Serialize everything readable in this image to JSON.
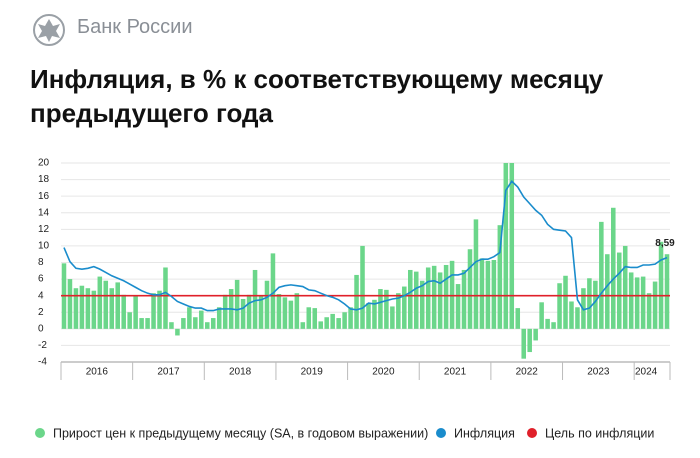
{
  "header": {
    "brand": "Банк России"
  },
  "chart_data": {
    "type": "bar",
    "title": "Инфляция, в % к соответствующему месяцу предыдущего года",
    "categories": [
      null,
      null,
      null,
      null,
      null,
      null,
      "2016",
      null,
      null,
      null,
      null,
      null,
      null,
      null,
      null,
      null,
      null,
      null,
      "2017",
      null,
      null,
      null,
      null,
      null,
      null,
      null,
      null,
      null,
      null,
      null,
      "2018",
      null,
      null,
      null,
      null,
      null,
      null,
      null,
      null,
      null,
      null,
      null,
      "2019",
      null,
      null,
      null,
      null,
      null,
      null,
      null,
      null,
      null,
      null,
      null,
      "2020",
      null,
      null,
      null,
      null,
      null,
      null,
      null,
      null,
      null,
      null,
      null,
      "2021",
      null,
      null,
      null,
      null,
      null,
      null,
      null,
      null,
      null,
      null,
      null,
      "2022",
      null,
      null,
      null,
      null,
      null,
      null,
      null,
      null,
      null,
      null,
      null,
      "2023",
      null,
      null,
      null,
      null,
      null,
      null,
      null,
      "2024",
      null,
      null,
      null
    ],
    "ylim": [
      -4,
      20
    ],
    "yticks": [
      -4,
      -2,
      0,
      2,
      4,
      6,
      8,
      10,
      12,
      14,
      16,
      18,
      20
    ],
    "grid": true,
    "series": [
      {
        "name": "Прирост цен к предыдущему месяцу (SA, в годовом выражении)",
        "type": "bar",
        "color": "#6bd68a",
        "values": [
          7.9,
          6.0,
          4.9,
          5.2,
          4.9,
          4.6,
          6.3,
          5.8,
          4.9,
          5.6,
          4.1,
          2.0,
          4.0,
          1.3,
          1.3,
          4.3,
          4.6,
          7.4,
          0.8,
          -0.8,
          1.3,
          2.6,
          1.4,
          2.2,
          0.8,
          1.3,
          2.6,
          4.1,
          4.8,
          5.9,
          3.6,
          4.1,
          7.1,
          4.0,
          5.8,
          9.1,
          4.2,
          3.8,
          3.4,
          4.3,
          0.8,
          2.6,
          2.5,
          0.9,
          1.4,
          1.8,
          1.3,
          2.0,
          2.6,
          6.5,
          10.0,
          3.1,
          3.5,
          4.8,
          4.7,
          2.7,
          4.3,
          5.1,
          7.1,
          6.9,
          5.8,
          7.4,
          7.6,
          6.8,
          7.7,
          8.2,
          5.4,
          7.1,
          9.6,
          13.2,
          8.5,
          8.2,
          8.3,
          12.5,
          20,
          20,
          2.5,
          -3.6,
          -2.8,
          -1.4,
          3.2,
          1.2,
          0.8,
          5.5,
          6.4,
          3.3,
          2.6,
          4.9,
          6.1,
          5.8,
          12.9,
          9.0,
          14.6,
          9.2,
          10.0,
          6.8,
          6.2,
          6.3,
          4.3,
          5.7,
          10.5,
          9.0
        ]
      },
      {
        "name": "Инфляция",
        "type": "line",
        "color": "#1a8ccc",
        "values": [
          9.8,
          8.1,
          7.3,
          7.2,
          7.3,
          7.5,
          7.2,
          6.8,
          6.4,
          6.1,
          5.8,
          5.4,
          5.0,
          4.6,
          4.3,
          4.1,
          4.1,
          4.4,
          3.9,
          3.3,
          3.0,
          2.7,
          2.5,
          2.5,
          2.2,
          2.2,
          2.4,
          2.4,
          2.4,
          2.3,
          2.5,
          3.1,
          3.4,
          3.5,
          3.8,
          4.3,
          5.0,
          5.2,
          5.3,
          5.2,
          5.1,
          4.7,
          4.6,
          4.3,
          4.0,
          3.8,
          3.5,
          3.0,
          2.4,
          2.3,
          2.5,
          3.1,
          3.0,
          3.2,
          3.4,
          3.6,
          3.7,
          4.0,
          4.4,
          4.9,
          5.2,
          5.7,
          5.8,
          5.5,
          6.0,
          6.5,
          6.5,
          6.7,
          7.4,
          8.1,
          8.4,
          8.4,
          8.7,
          9.2,
          16.7,
          17.8,
          17.1,
          15.9,
          15.1,
          14.3,
          13.7,
          12.6,
          12.0,
          11.9,
          11.8,
          11.0,
          3.5,
          2.3,
          2.5,
          3.3,
          4.3,
          5.2,
          6.0,
          6.7,
          7.5,
          7.4,
          7.4,
          7.7,
          7.7,
          7.8,
          8.3,
          8.59
        ],
        "value_labels": [
          null,
          null,
          null,
          null,
          null,
          null,
          null,
          null,
          null,
          null,
          null,
          null,
          null,
          null,
          null,
          null,
          null,
          null,
          null,
          null,
          null,
          null,
          null,
          null,
          null,
          null,
          null,
          null,
          null,
          null,
          null,
          null,
          null,
          null,
          null,
          null,
          null,
          null,
          null,
          null,
          null,
          null,
          null,
          null,
          null,
          null,
          null,
          null,
          null,
          null,
          null,
          null,
          null,
          null,
          null,
          null,
          null,
          null,
          null,
          null,
          null,
          null,
          null,
          null,
          null,
          null,
          null,
          null,
          null,
          null,
          null,
          null,
          null,
          null,
          null,
          null,
          null,
          null,
          null,
          null,
          null,
          null,
          null,
          null,
          null,
          null,
          null,
          null,
          null,
          null,
          null,
          null,
          null,
          null,
          null,
          null,
          null,
          null,
          null,
          null,
          null,
          "8,59"
        ]
      },
      {
        "name": "Цель по инфляции",
        "type": "hline",
        "color": "#e0202a",
        "value": 4
      }
    ]
  }
}
